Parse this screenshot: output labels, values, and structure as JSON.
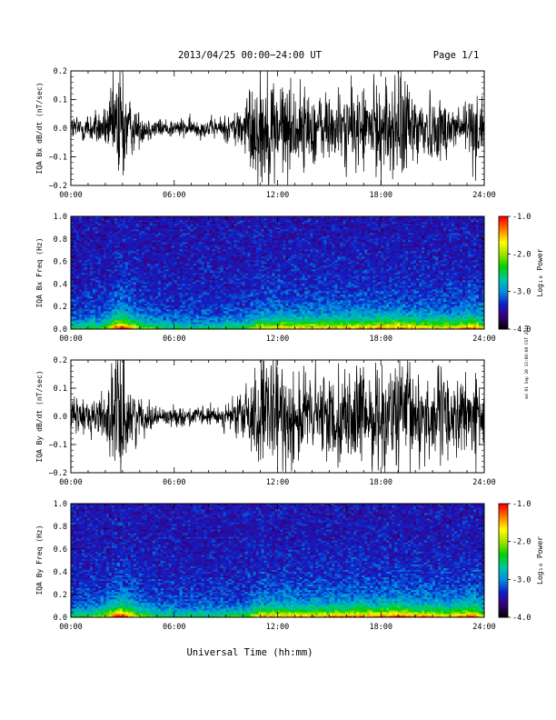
{
  "header": {
    "title": "2013/04/25  00:00−24:00 UT",
    "page": "Page 1/1"
  },
  "xaxis": {
    "label": "Universal Time (hh:mm)",
    "tick_labels": [
      "00:00",
      "06:00",
      "12:00",
      "18:00",
      "24:00"
    ],
    "range_hours": [
      0,
      24
    ]
  },
  "side_note": "md 01 Sep 20 13:08:08 CST 2019",
  "colorbar": {
    "label": "Log₁₀ Power",
    "tick_labels": [
      "-1.0",
      "-2.0",
      "-3.0",
      "-4.0"
    ],
    "range": [
      -4.0,
      -1.0
    ],
    "colors": [
      "#000000",
      "#3a0080",
      "#1020c8",
      "#0090e0",
      "#00c8a0",
      "#00d000",
      "#a0e000",
      "#ffff00",
      "#ff8000",
      "#ff0000"
    ]
  },
  "panels": [
    {
      "ylabel": "IQA Bx dB/dt (nT/sec)",
      "ytick_labels": [
        "0.2",
        "0.1",
        "0.0",
        "−0.1",
        "−0.2"
      ]
    },
    {
      "ylabel": "IQA Bx Freq (Hz)",
      "ytick_labels": [
        "1.0",
        "0.8",
        "0.6",
        "0.4",
        "0.2",
        "0.0"
      ]
    },
    {
      "ylabel": "IQA By dB/dt (nT/sec)",
      "ytick_labels": [
        "0.2",
        "0.1",
        "0.0",
        "−0.1",
        "−0.2"
      ]
    },
    {
      "ylabel": "IQA By Freq (Hz)",
      "ytick_labels": [
        "1.0",
        "0.8",
        "0.6",
        "0.4",
        "0.2",
        "0.0"
      ]
    }
  ],
  "chart_data": [
    {
      "type": "line",
      "component": "Bx",
      "ylabel": "IQA Bx dB/dt (nT/sec)",
      "xlim": [
        0,
        24
      ],
      "ylim": [
        -0.2,
        0.2
      ],
      "x": [
        0,
        1,
        2,
        2.4,
        2.7,
        3,
        3.3,
        4,
        5,
        6,
        7,
        8,
        9,
        10,
        10.5,
        11,
        12,
        13,
        14,
        15,
        16,
        17,
        18,
        19,
        20,
        21,
        22,
        23,
        23.5,
        24
      ],
      "y_envelope": [
        0.04,
        0.05,
        0.06,
        0.12,
        0.22,
        0.22,
        0.1,
        0.05,
        0.03,
        0.03,
        0.03,
        0.03,
        0.04,
        0.08,
        0.15,
        0.18,
        0.17,
        0.13,
        0.12,
        0.11,
        0.12,
        0.13,
        0.14,
        0.18,
        0.14,
        0.1,
        0.09,
        0.09,
        0.13,
        0.08
      ]
    },
    {
      "type": "heatmap",
      "component": "Bx",
      "ylabel": "IQA Bx Freq (Hz)",
      "xlim": [
        0,
        24
      ],
      "ylim": [
        0,
        1.0
      ],
      "zlim": [
        -4.0,
        -1.0
      ],
      "zlabel": "Log₁₀ Power",
      "x": [
        0,
        2,
        2.7,
        3,
        4,
        6,
        8,
        10,
        11,
        12,
        14,
        16,
        18,
        19,
        20,
        22,
        23.5,
        24
      ],
      "activity": [
        0.3,
        0.4,
        0.8,
        0.8,
        0.45,
        0.3,
        0.3,
        0.35,
        0.55,
        0.6,
        0.6,
        0.62,
        0.65,
        0.7,
        0.62,
        0.58,
        0.7,
        0.5
      ]
    },
    {
      "type": "line",
      "component": "By",
      "ylabel": "IQA By dB/dt (nT/sec)",
      "xlim": [
        0,
        24
      ],
      "ylim": [
        -0.2,
        0.2
      ],
      "x": [
        0,
        1,
        2,
        2.4,
        2.7,
        3,
        3.3,
        4,
        5,
        6,
        7,
        8,
        9,
        10,
        10.5,
        11,
        12,
        13,
        14,
        15,
        16,
        17,
        18,
        19,
        20,
        21,
        22,
        23,
        23.5,
        24
      ],
      "y_envelope": [
        0.05,
        0.06,
        0.08,
        0.15,
        0.22,
        0.22,
        0.12,
        0.06,
        0.03,
        0.03,
        0.03,
        0.03,
        0.04,
        0.08,
        0.15,
        0.17,
        0.18,
        0.16,
        0.14,
        0.14,
        0.15,
        0.15,
        0.16,
        0.2,
        0.17,
        0.14,
        0.14,
        0.12,
        0.14,
        0.1
      ]
    },
    {
      "type": "heatmap",
      "component": "By",
      "ylabel": "IQA By Freq (Hz)",
      "xlim": [
        0,
        24
      ],
      "ylim": [
        0,
        1.0
      ],
      "zlim": [
        -4.0,
        -1.0
      ],
      "zlabel": "Log₁₀ Power",
      "x": [
        0,
        2,
        2.7,
        3,
        4,
        6,
        8,
        10,
        11,
        12,
        14,
        16,
        18,
        19,
        20,
        22,
        23.5,
        24
      ],
      "activity": [
        0.3,
        0.45,
        0.85,
        0.8,
        0.45,
        0.3,
        0.3,
        0.35,
        0.6,
        0.62,
        0.62,
        0.65,
        0.68,
        0.72,
        0.66,
        0.6,
        0.72,
        0.52
      ]
    }
  ]
}
